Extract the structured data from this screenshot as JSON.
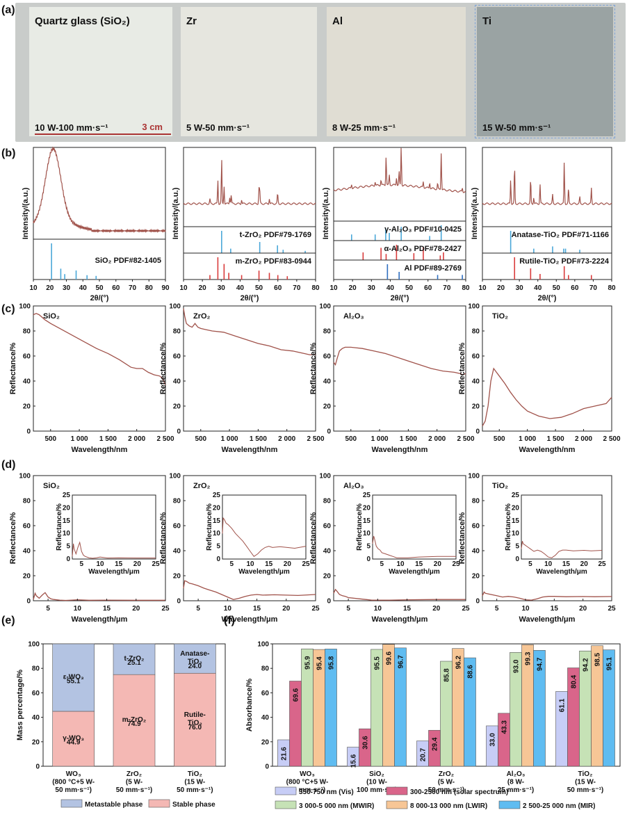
{
  "panel_labels": [
    "(a)",
    "(b)",
    "(c)",
    "(d)",
    "(e)",
    "(f)"
  ],
  "photos": [
    {
      "title": "Quartz glass (SiO₂)",
      "param": "10 W-100 mm·s⁻¹",
      "color": "#e8ebe5",
      "scale": "3 cm"
    },
    {
      "title": "Zr",
      "param": "5 W-50 mm·s⁻¹",
      "color": "#e6e6df"
    },
    {
      "title": "Al",
      "param": "8 W-25 mm·s⁻¹",
      "color": "#e0ddd3"
    },
    {
      "title": "Ti",
      "param": "15 W-50 mm·s⁻¹",
      "color": "#9aa3a3"
    }
  ],
  "chart_data": [
    {
      "type": "line",
      "panel": "b",
      "name": "xrd-sio2",
      "xlabel": "2θ/(°)",
      "ylabel": "Intensity/(a.u.)",
      "xlim": [
        10,
        90
      ],
      "xticks": [
        "10",
        "20",
        "30",
        "40",
        "50",
        "60",
        "70",
        "80",
        "90"
      ],
      "refs": [
        {
          "label": "SiO₂ PDF#82-1405",
          "color": "#4aa7d8",
          "peaks": [
            [
              21.0,
              1.0
            ],
            [
              26.6,
              0.3
            ],
            [
              29,
              0.15
            ],
            [
              35.9,
              0.25
            ],
            [
              42.5,
              0.12
            ],
            [
              48,
              0.1
            ]
          ]
        }
      ]
    },
    {
      "type": "line",
      "panel": "b",
      "name": "xrd-zro2",
      "xlabel": "2θ/(°)",
      "ylabel": "Intensity/(a.u.)",
      "xlim": [
        10,
        80
      ],
      "xticks": [
        "10",
        "20",
        "30",
        "40",
        "50",
        "60",
        "70",
        "80"
      ],
      "refs": [
        {
          "label": "t-ZrO₂ PDF#79-1769",
          "color": "#4aa7d8",
          "peaks": [
            [
              30.2,
              1.0
            ],
            [
              35,
              0.2
            ],
            [
              50.4,
              0.5
            ],
            [
              59.8,
              0.35
            ],
            [
              62.8,
              0.15
            ],
            [
              74.5,
              0.1
            ]
          ]
        },
        {
          "label": "m-ZrO₂ PDF#83-0944",
          "color": "#d93b3b",
          "peaks": [
            [
              24,
              0.2
            ],
            [
              28.2,
              1.0
            ],
            [
              31.5,
              0.7
            ],
            [
              34,
              0.3
            ],
            [
              40.8,
              0.2
            ],
            [
              50,
              0.4
            ],
            [
              55.5,
              0.3
            ],
            [
              60,
              0.2
            ],
            [
              65,
              0.15
            ]
          ]
        }
      ]
    },
    {
      "type": "line",
      "panel": "b",
      "name": "xrd-al2o3",
      "xlabel": "2θ/(°)",
      "ylabel": "Intensity/(a.u.)",
      "xlim": [
        10,
        80
      ],
      "xticks": [
        "10",
        "20",
        "30",
        "40",
        "50",
        "60",
        "70",
        "80"
      ],
      "refs": [
        {
          "label": "γ-Al₂O₃ PDF#10-0425",
          "color": "#4aa7d8",
          "peaks": [
            [
              19.5,
              0.4
            ],
            [
              32,
              0.4
            ],
            [
              37.6,
              0.8
            ],
            [
              39.5,
              0.5
            ],
            [
              45.8,
              0.9
            ],
            [
              60.9,
              0.3
            ],
            [
              67,
              1.0
            ]
          ]
        },
        {
          "label": "α-Al₂O₃ PDF#78-2427",
          "color": "#d93b3b",
          "peaks": [
            [
              25.6,
              0.5
            ],
            [
              35.1,
              0.8
            ],
            [
              37.8,
              0.4
            ],
            [
              43.3,
              1.0
            ],
            [
              52.5,
              0.45
            ],
            [
              57.5,
              0.85
            ],
            [
              66.5,
              0.3
            ],
            [
              68.2,
              0.5
            ]
          ]
        },
        {
          "label": "Al PDF#89-2769",
          "color": "#2f6fc0",
          "peaks": [
            [
              38.5,
              1.0
            ],
            [
              44.7,
              0.5
            ],
            [
              65.1,
              0.3
            ],
            [
              78.2,
              0.3
            ]
          ]
        }
      ]
    },
    {
      "type": "line",
      "panel": "b",
      "name": "xrd-tio2",
      "xlabel": "2θ/(°)",
      "ylabel": "Intensity/(a.u.)",
      "xlim": [
        10,
        80
      ],
      "xticks": [
        "10",
        "20",
        "30",
        "40",
        "50",
        "60",
        "70",
        "80"
      ],
      "refs": [
        {
          "label": "Anatase-TiO₂ PDF#71-1166",
          "color": "#4aa7d8",
          "peaks": [
            [
              25.3,
              1.0
            ],
            [
              37.8,
              0.2
            ],
            [
              48,
              0.3
            ],
            [
              54,
              0.2
            ],
            [
              55,
              0.2
            ],
            [
              62.7,
              0.15
            ]
          ]
        },
        {
          "label": "Rutile-TiO₂ PDF#73-2224",
          "color": "#d93b3b",
          "peaks": [
            [
              27.4,
              1.0
            ],
            [
              36.1,
              0.5
            ],
            [
              41.2,
              0.25
            ],
            [
              54.3,
              0.6
            ],
            [
              56.6,
              0.2
            ],
            [
              69,
              0.2
            ]
          ]
        }
      ]
    },
    {
      "type": "line",
      "panel": "c",
      "name": "refl-sio2",
      "label": "SiO₂",
      "xlabel": "Wavelength/nm",
      "ylabel": "Reflectance/%",
      "xlim": [
        200,
        2500
      ],
      "ylim": [
        0,
        100
      ],
      "xticks": [
        "500",
        "1 000",
        "1 500",
        "2 000",
        "2 500"
      ],
      "yticks": [
        "0",
        "20",
        "40",
        "60",
        "80",
        "100"
      ],
      "x": [
        200,
        250,
        300,
        400,
        500,
        700,
        900,
        1100,
        1300,
        1500,
        1700,
        1900,
        2000,
        2100,
        2200,
        2300,
        2400,
        2450,
        2500
      ],
      "y": [
        93,
        94,
        93,
        89,
        86,
        81,
        76,
        71,
        66,
        62,
        57,
        51,
        50,
        50,
        47,
        45,
        44,
        42,
        37
      ]
    },
    {
      "type": "line",
      "panel": "c",
      "name": "refl-zro2",
      "label": "ZrO₂",
      "xlabel": "Wavelength/nm",
      "ylabel": "Reflectance/%",
      "xlim": [
        200,
        2500
      ],
      "ylim": [
        0,
        100
      ],
      "xticks": [
        "500",
        "1 000",
        "1 500",
        "2 000",
        "2 500"
      ],
      "yticks": [
        "0",
        "20",
        "40",
        "60",
        "80",
        "100"
      ],
      "x": [
        200,
        220,
        250,
        300,
        350,
        400,
        450,
        500,
        600,
        700,
        900,
        1100,
        1300,
        1500,
        1700,
        1900,
        2100,
        2300,
        2400,
        2500
      ],
      "y": [
        98,
        92,
        86,
        84,
        83,
        86,
        83,
        82,
        81,
        80,
        79,
        76,
        73,
        70,
        68,
        65,
        64,
        62,
        61,
        61
      ]
    },
    {
      "type": "line",
      "panel": "c",
      "name": "refl-al2o3",
      "label": "Al₂O₃",
      "xlabel": "Wavelength/nm",
      "ylabel": "Reflectance/%",
      "xlim": [
        200,
        2500
      ],
      "ylim": [
        0,
        100
      ],
      "xticks": [
        "500",
        "1 000",
        "1 500",
        "2 000",
        "2 500"
      ],
      "yticks": [
        "0",
        "20",
        "40",
        "60",
        "80",
        "100"
      ],
      "x": [
        200,
        230,
        260,
        300,
        350,
        400,
        500,
        700,
        900,
        1100,
        1300,
        1500,
        1700,
        1900,
        2100,
        2300,
        2400,
        2450,
        2500
      ],
      "y": [
        55,
        53,
        58,
        64,
        66,
        67,
        67,
        66,
        64,
        62,
        59,
        56,
        53,
        50,
        48,
        47,
        46,
        45,
        46
      ]
    },
    {
      "type": "line",
      "panel": "c",
      "name": "refl-tio2",
      "label": "TiO₂",
      "xlabel": "Wavelength/nm",
      "ylabel": "Reflectance/%",
      "xlim": [
        200,
        2500
      ],
      "ylim": [
        0,
        100
      ],
      "xticks": [
        "500",
        "1 000",
        "1 500",
        "2 000",
        "2 500"
      ],
      "yticks": [
        "0",
        "20",
        "40",
        "60",
        "80",
        "100"
      ],
      "x": [
        200,
        250,
        300,
        350,
        400,
        450,
        500,
        600,
        700,
        800,
        900,
        1000,
        1200,
        1400,
        1600,
        1800,
        2000,
        2200,
        2400,
        2500
      ],
      "y": [
        4,
        8,
        20,
        40,
        50,
        47,
        44,
        38,
        31,
        25,
        20,
        16,
        12,
        10,
        11,
        14,
        18,
        20,
        22,
        27
      ]
    },
    {
      "type": "line",
      "panel": "d",
      "name": "ir-sio2",
      "label": "SiO₂",
      "xlabel": "Wavelength/μm",
      "ylabel": "Reflectance/%",
      "xlim": [
        2.5,
        25
      ],
      "ylim": [
        0,
        100
      ],
      "xticks": [
        "5",
        "10",
        "15",
        "20",
        "25"
      ],
      "yticks": [
        "0",
        "20",
        "40",
        "60",
        "80",
        "100"
      ],
      "inset": {
        "xlabel": "Wavelength/μm",
        "ylabel": "Reflectance/%",
        "ylim": [
          0,
          25
        ],
        "yticks": [
          "0",
          "5",
          "10",
          "15",
          "20",
          "25"
        ],
        "xticks": [
          "5",
          "10",
          "15",
          "20",
          "25"
        ]
      },
      "x": [
        2.5,
        2.8,
        3,
        3.5,
        4,
        4.5,
        5,
        5.5,
        6,
        7,
        8,
        9,
        10,
        12,
        15,
        20,
        25
      ],
      "y": [
        1,
        6,
        4,
        2,
        4.5,
        6.5,
        3,
        1.5,
        1,
        0.5,
        0.3,
        0.5,
        0.8,
        0.4,
        0.5,
        0.4,
        0.4
      ]
    },
    {
      "type": "line",
      "panel": "d",
      "name": "ir-zro2",
      "label": "ZrO₂",
      "xlabel": "Wavelength/μm",
      "ylabel": "Reflectance/%",
      "xlim": [
        2.5,
        25
      ],
      "ylim": [
        0,
        100
      ],
      "xticks": [
        "5",
        "10",
        "15",
        "20",
        "25"
      ],
      "yticks": [
        "0",
        "20",
        "40",
        "60",
        "80",
        "100"
      ],
      "inset": {
        "xlabel": "Wavelength/μm",
        "ylabel": "Reflectance/%",
        "ylim": [
          0,
          25
        ],
        "yticks": [
          "0",
          "5",
          "10",
          "15",
          "20",
          "25"
        ],
        "xticks": [
          "5",
          "10",
          "15",
          "20",
          "25"
        ]
      },
      "x": [
        2.5,
        2.7,
        3,
        3.5,
        4,
        5,
        6,
        7,
        8,
        9,
        10,
        11,
        12,
        13,
        14,
        15,
        16,
        18,
        20,
        22,
        25
      ],
      "y": [
        10,
        16,
        15.5,
        14,
        13.5,
        12,
        10,
        8.5,
        7,
        5,
        3,
        1,
        2,
        3.5,
        4.5,
        5,
        4.5,
        4.8,
        4.5,
        4.2,
        5
      ]
    },
    {
      "type": "line",
      "panel": "d",
      "name": "ir-al2o3",
      "label": "Al₂O₃",
      "xlabel": "Wavelength/μm",
      "ylabel": "Reflectance/%",
      "xlim": [
        2.5,
        25
      ],
      "ylim": [
        0,
        100
      ],
      "xticks": [
        "5",
        "10",
        "15",
        "20",
        "25"
      ],
      "yticks": [
        "0",
        "20",
        "40",
        "60",
        "80",
        "100"
      ],
      "inset": {
        "xlabel": "Wavelength/μm",
        "ylabel": "Reflectance/%",
        "ylim": [
          0,
          25
        ],
        "yticks": [
          "0",
          "5",
          "10",
          "15",
          "20",
          "25"
        ],
        "xticks": [
          "5",
          "10",
          "15",
          "20",
          "25"
        ]
      },
      "x": [
        2.5,
        2.8,
        3,
        3.5,
        4,
        4.5,
        5,
        6,
        7,
        8,
        9,
        10,
        12,
        15,
        20,
        25
      ],
      "y": [
        6,
        9,
        8,
        5,
        4,
        3.5,
        2.5,
        2,
        1.5,
        1,
        0.5,
        0.5,
        0.5,
        0.8,
        1,
        1
      ]
    },
    {
      "type": "line",
      "panel": "d",
      "name": "ir-tio2",
      "label": "TiO₂",
      "xlabel": "Wavelength/μm",
      "ylabel": "Reflectance/%",
      "xlim": [
        2.5,
        25
      ],
      "ylim": [
        0,
        100
      ],
      "xticks": [
        "5",
        "10",
        "15",
        "20",
        "25"
      ],
      "yticks": [
        "0",
        "20",
        "40",
        "60",
        "80",
        "100"
      ],
      "inset": {
        "xlabel": "Wavelength/μm",
        "ylabel": "Reflectance/%",
        "ylim": [
          0,
          25
        ],
        "yticks": [
          "0",
          "5",
          "10",
          "15",
          "20",
          "25"
        ],
        "xticks": [
          "5",
          "10",
          "15",
          "20",
          "25"
        ]
      },
      "x": [
        2.5,
        2.8,
        3,
        3.5,
        4,
        5,
        6,
        7,
        8,
        9,
        10,
        11,
        12,
        13,
        14,
        15,
        17,
        20,
        22,
        25
      ],
      "y": [
        4,
        7,
        6,
        5.5,
        5,
        4,
        3,
        3.5,
        3,
        2,
        0.8,
        0.5,
        1.5,
        3,
        3.5,
        3.5,
        3.2,
        3.4,
        3.2,
        3.4
      ]
    },
    {
      "type": "bar",
      "panel": "e",
      "name": "mass-percentage",
      "ylabel": "Mass percentage/%",
      "ylim": [
        0,
        100
      ],
      "yticks": [
        "0",
        "20",
        "40",
        "60",
        "80",
        "100"
      ],
      "categories": [
        "WO₃\n(800 °C+5 W-\n50 mm·s⁻¹)",
        "ZrO₂\n(5 W-\n50 mm·s⁻¹)",
        "TiO₂\n(15 W-\n50 mm·s⁻¹)"
      ],
      "series": [
        {
          "name": "Stable phase",
          "color": "#f4b8b4",
          "values": [
            44.9,
            74.9,
            76.0
          ],
          "labels": [
            "γ-WO₃",
            "m-ZrO₂",
            "Rutile-\nTiO₂"
          ]
        },
        {
          "name": "Metastable phase",
          "color": "#b3c3e2",
          "values": [
            55.1,
            25.1,
            24.0
          ],
          "labels": [
            "ε-WO₃",
            "t-ZrO₂",
            "Anatase-\nTiO₂"
          ]
        }
      ],
      "legend": [
        "Metastable phase",
        "Stable phase"
      ]
    },
    {
      "type": "bar",
      "panel": "f",
      "name": "absorbance",
      "ylabel": "Absorbance/%",
      "ylim": [
        0,
        100
      ],
      "yticks": [
        "0",
        "20",
        "40",
        "60",
        "80",
        "100"
      ],
      "categories": [
        "WO₃\n(800 °C+5 W-\n50 mm·s⁻¹)",
        "SiO₂\n(10 W-\n100 mm·s⁻¹)",
        "ZrO₂\n(5 W-\n50 mm·s⁻¹)",
        "Al₂O₃\n(8 W-\n25 mm·s⁻¹)",
        "TiO₂\n(15 W-\n50 mm·s⁻¹)"
      ],
      "series": [
        {
          "name": "350-750 nm (Vis)",
          "color": "#c7cdf6",
          "values": [
            21.6,
            15.6,
            20.7,
            33.0,
            61.1
          ]
        },
        {
          "name": "300-2500 nm (solar spectrum)",
          "color": "#d9658a",
          "values": [
            69.6,
            30.6,
            29.4,
            43.3,
            80.4
          ]
        },
        {
          "name": "3 000-5 000 nm (MWIR)",
          "color": "#c6e2b6",
          "values": [
            95.9,
            95.5,
            85.8,
            93.0,
            94.2
          ]
        },
        {
          "name": "8 000-13 000 nm (LWIR)",
          "color": "#f7c696",
          "values": [
            95.4,
            99.6,
            96.2,
            99.3,
            98.5
          ]
        },
        {
          "name": "2 500-25 000 nm (MIR)",
          "color": "#5fbcf1",
          "values": [
            95.8,
            96.7,
            88.6,
            94.7,
            95.1
          ]
        }
      ]
    }
  ]
}
